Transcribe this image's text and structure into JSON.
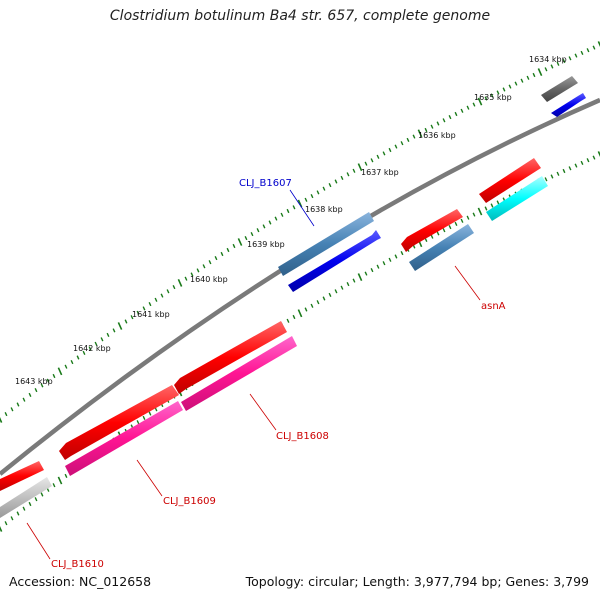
{
  "title": "Clostridium botulinum Ba4 str. 657, complete genome",
  "accession": "Accession: NC_012658",
  "summary": "Topology: circular; Length: 3,977,794 bp; Genes: 3,799",
  "colors": {
    "backbone": "#7a7a7a",
    "tick_outer": "#1a7a1a",
    "tick_inner": "#1a7a1a",
    "label_red": "#cc0000",
    "label_blue": "#0000cc"
  },
  "ticks": [
    {
      "label": "1634 kbp"
    },
    {
      "label": "1635 kbp"
    },
    {
      "label": "1636 kbp"
    },
    {
      "label": "1637 kbp"
    },
    {
      "label": "1638 kbp"
    },
    {
      "label": "1639 kbp"
    },
    {
      "label": "1640 kbp"
    },
    {
      "label": "1641 kbp"
    },
    {
      "label": "1642 kbp"
    },
    {
      "label": "1643 kbp"
    }
  ],
  "genes": [
    {
      "name": "CLJ_B1607",
      "color": "#0000cc",
      "labelColor": "#0000cc"
    },
    {
      "name": "asnA",
      "color": "#cc0000",
      "labelColor": "#cc0000"
    },
    {
      "name": "CLJ_B1608",
      "color": "#cc0000",
      "labelColor": "#cc0000"
    },
    {
      "name": "CLJ_B1609",
      "color": "#cc0000",
      "labelColor": "#cc0000"
    },
    {
      "name": "CLJ_B1610",
      "color": "#cc0000",
      "labelColor": "#cc0000"
    }
  ]
}
